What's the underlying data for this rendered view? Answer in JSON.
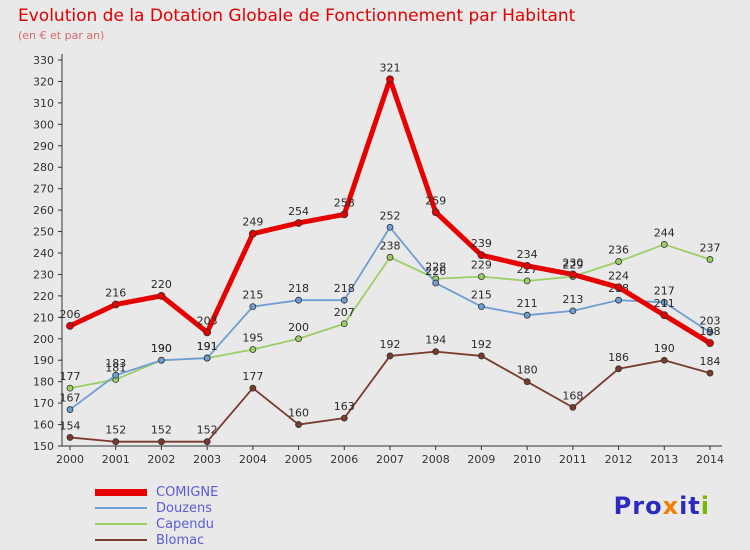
{
  "header": {
    "title": "Evolution de la Dotation Globale de Fonctionnement par Habitant",
    "subtitle": "(en € et par an)"
  },
  "chart_data": {
    "type": "line",
    "x": [
      2000,
      2001,
      2002,
      2003,
      2004,
      2005,
      2006,
      2007,
      2008,
      2009,
      2010,
      2011,
      2012,
      2013,
      2014
    ],
    "series": [
      {
        "name": "COMIGNE",
        "color": "#e80000",
        "thick": true,
        "values": [
          206,
          216,
          220,
          203,
          249,
          254,
          258,
          321,
          259,
          239,
          234,
          230,
          224,
          211,
          198
        ]
      },
      {
        "name": "Douzens",
        "color": "#6f9ed2",
        "thick": false,
        "values": [
          167,
          183,
          190,
          191,
          215,
          218,
          218,
          252,
          226,
          215,
          211,
          213,
          218,
          217,
          203
        ]
      },
      {
        "name": "Capendu",
        "color": "#9cce66",
        "thick": false,
        "values": [
          177,
          181,
          190,
          191,
          195,
          200,
          207,
          238,
          228,
          229,
          227,
          229,
          236,
          244,
          237
        ]
      },
      {
        "name": "Blomac",
        "color": "#7a3a2c",
        "thick": false,
        "values": [
          154,
          152,
          152,
          152,
          177,
          160,
          163,
          192,
          194,
          192,
          180,
          168,
          186,
          190,
          184
        ]
      }
    ],
    "ylim": [
      150,
      330
    ],
    "ytick_step": 10,
    "grid": false,
    "legend_position": "bottom-left",
    "label_color": "#2a2a2a",
    "axis_color": "#333333",
    "tick_label_color": "#333333"
  },
  "legend": {
    "label_color": "#5b5bd6"
  },
  "logo": {
    "parts": [
      {
        "text": "Pro",
        "color": "#2b2bbf"
      },
      {
        "text": "x",
        "color": "#f08000"
      },
      {
        "text": "it",
        "color": "#2b2bbf"
      },
      {
        "text": "i",
        "color": "#76b900"
      }
    ]
  }
}
